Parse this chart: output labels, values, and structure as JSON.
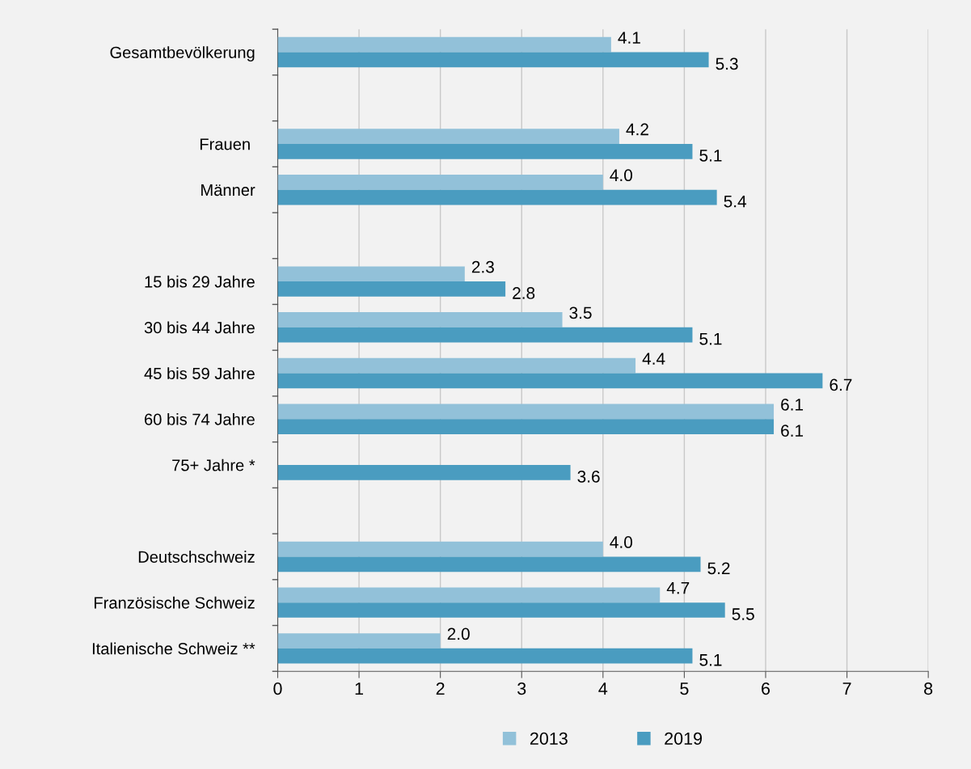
{
  "chart_data": {
    "type": "bar",
    "orientation": "horizontal",
    "categories": [
      "Gesamtbevölkerung",
      null,
      "Frauen ",
      "Männer",
      null,
      "15 bis 29 Jahre",
      "30 bis 44 Jahre",
      "45 bis 59 Jahre",
      "60 bis 74 Jahre",
      "75+ Jahre *",
      null,
      "Deutschschweiz",
      "Französische Schweiz",
      "Italienische Schweiz **"
    ],
    "series": [
      {
        "name": "2013",
        "color": "#92c1d9",
        "values": [
          4.1,
          null,
          4.2,
          4.0,
          null,
          2.3,
          3.5,
          4.4,
          6.1,
          null,
          null,
          4.0,
          4.7,
          2.0
        ],
        "value_labels": [
          "4.1",
          null,
          "4.2",
          "4.0",
          null,
          "2.3",
          "3.5",
          "4.4",
          "6.1",
          null,
          null,
          "4.0",
          "4.7",
          "2.0"
        ]
      },
      {
        "name": "2019",
        "color": "#4a9cc0",
        "values": [
          5.3,
          null,
          5.1,
          5.4,
          null,
          2.8,
          5.1,
          6.7,
          6.1,
          3.6,
          null,
          5.2,
          5.5,
          5.1
        ],
        "value_labels": [
          "5.3",
          null,
          "5.1",
          "5.4",
          null,
          "2.8",
          "5.1",
          "6.7",
          "6.1",
          "3.6",
          null,
          "5.2",
          "5.5",
          "5.1"
        ]
      }
    ],
    "xlim": [
      0,
      8
    ],
    "xticks": [
      0,
      1,
      2,
      3,
      4,
      5,
      6,
      7,
      8
    ],
    "grid": "x",
    "legend": "bottom"
  }
}
